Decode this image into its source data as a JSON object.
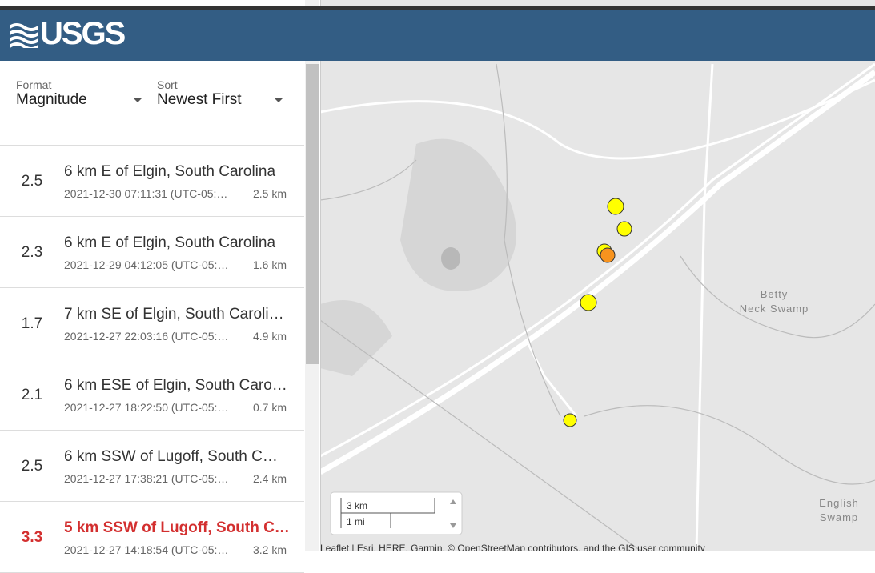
{
  "header": {
    "logo": "USGS"
  },
  "controls": {
    "format": {
      "label": "Format",
      "value": "Magnitude"
    },
    "sort": {
      "label": "Sort",
      "value": "Newest First"
    }
  },
  "events": [
    {
      "magnitude": 2.5,
      "title": "6 km E of Elgin, South Carolina",
      "time": "2021-12-30 07:11:31 (UTC-05:…",
      "depth": "2.5 km"
    },
    {
      "magnitude": 2.3,
      "title": "6 km E of Elgin, South Carolina",
      "time": "2021-12-29 04:12:05 (UTC-05:…",
      "depth": "1.6 km"
    },
    {
      "magnitude": 1.7,
      "title": "7 km SE of Elgin, South Caroli…",
      "time": "2021-12-27 22:03:16 (UTC-05:…",
      "depth": "4.9 km"
    },
    {
      "magnitude": 2.1,
      "title": "6 km ESE of Elgin, South Caro…",
      "time": "2021-12-27 18:22:50 (UTC-05:…",
      "depth": "0.7 km"
    },
    {
      "magnitude": 2.5,
      "title": "6 km SSW of Lugoff, South C…",
      "time": "2021-12-27 17:38:21 (UTC-05:…",
      "depth": "2.4 km"
    },
    {
      "magnitude": 3.3,
      "title": "5 km SSW of Lugoff, South C…",
      "time": "2021-12-27 14:18:54 (UTC-05:…",
      "depth": "3.2 km"
    }
  ],
  "map": {
    "labels": [
      [
        "Betty",
        "Neck Swamp"
      ],
      [
        "English",
        "Swamp"
      ]
    ],
    "scale": [
      "3 km",
      "1 mi"
    ],
    "attribution": "Leaflet | Esri, HERE, Garmin, © OpenStreetMap contributors, and the GIS user community"
  }
}
